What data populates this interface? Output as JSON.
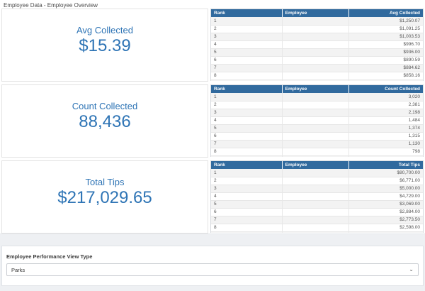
{
  "page": {
    "title": "Employee Data - Employee Overview"
  },
  "colors": {
    "table_header_blue": "#316a9e",
    "kpi_text_blue": "#2e74b5",
    "page_background": "#eef0f3"
  },
  "sections": [
    {
      "kpi": {
        "label": "Avg Collected",
        "value": "$15.39"
      },
      "table": {
        "columns": [
          "Rank",
          "Employee",
          "Avg Collected"
        ],
        "rows": [
          [
            "1",
            "",
            "$1,250.07"
          ],
          [
            "2",
            "",
            "$1,091.25"
          ],
          [
            "3",
            "",
            "$1,003.53"
          ],
          [
            "4",
            "",
            "$996.70"
          ],
          [
            "5",
            "",
            "$936.00"
          ],
          [
            "6",
            "",
            "$890.59"
          ],
          [
            "7",
            "",
            "$884.62"
          ],
          [
            "8",
            "",
            "$858.16"
          ]
        ]
      }
    },
    {
      "kpi": {
        "label": "Count Collected",
        "value": "88,436"
      },
      "table": {
        "columns": [
          "Rank",
          "Employee",
          "Count Collected"
        ],
        "rows": [
          [
            "1",
            "",
            "3,020"
          ],
          [
            "2",
            "",
            "2,381"
          ],
          [
            "3",
            "",
            "2,198"
          ],
          [
            "4",
            "",
            "1,484"
          ],
          [
            "5",
            "",
            "1,374"
          ],
          [
            "6",
            "",
            "1,315"
          ],
          [
            "7",
            "",
            "1,130"
          ],
          [
            "8",
            "",
            "798"
          ]
        ]
      }
    },
    {
      "kpi": {
        "label": "Total Tips",
        "value": "$217,029.65"
      },
      "table": {
        "columns": [
          "Rank",
          "Employee",
          "Total Tips"
        ],
        "rows": [
          [
            "1",
            "",
            "$80,700.00"
          ],
          [
            "2",
            "",
            "$6,771.00"
          ],
          [
            "3",
            "",
            "$5,000.00"
          ],
          [
            "4",
            "",
            "$4,729.00"
          ],
          [
            "5",
            "",
            "$3,069.00"
          ],
          [
            "6",
            "",
            "$2,884.00"
          ],
          [
            "7",
            "",
            "$2,773.50"
          ],
          [
            "8",
            "",
            "$2,598.00"
          ]
        ]
      }
    }
  ],
  "footer": {
    "label": "Employee Performance View Type",
    "select_value": "Parks"
  },
  "icons": {
    "chevron_down": "⌄"
  }
}
